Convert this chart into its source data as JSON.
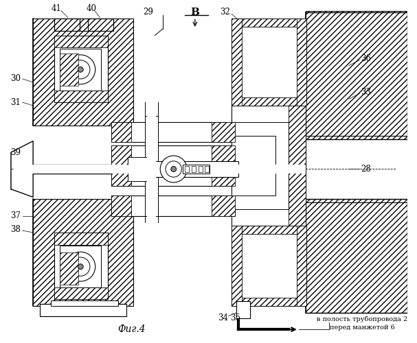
{
  "fig_label": "Фиг.4",
  "annotation_line1": "в полость трубопровода 2",
  "annotation_line2": "перед манжетой 6",
  "view_label": "В",
  "bg_color": "#ffffff"
}
